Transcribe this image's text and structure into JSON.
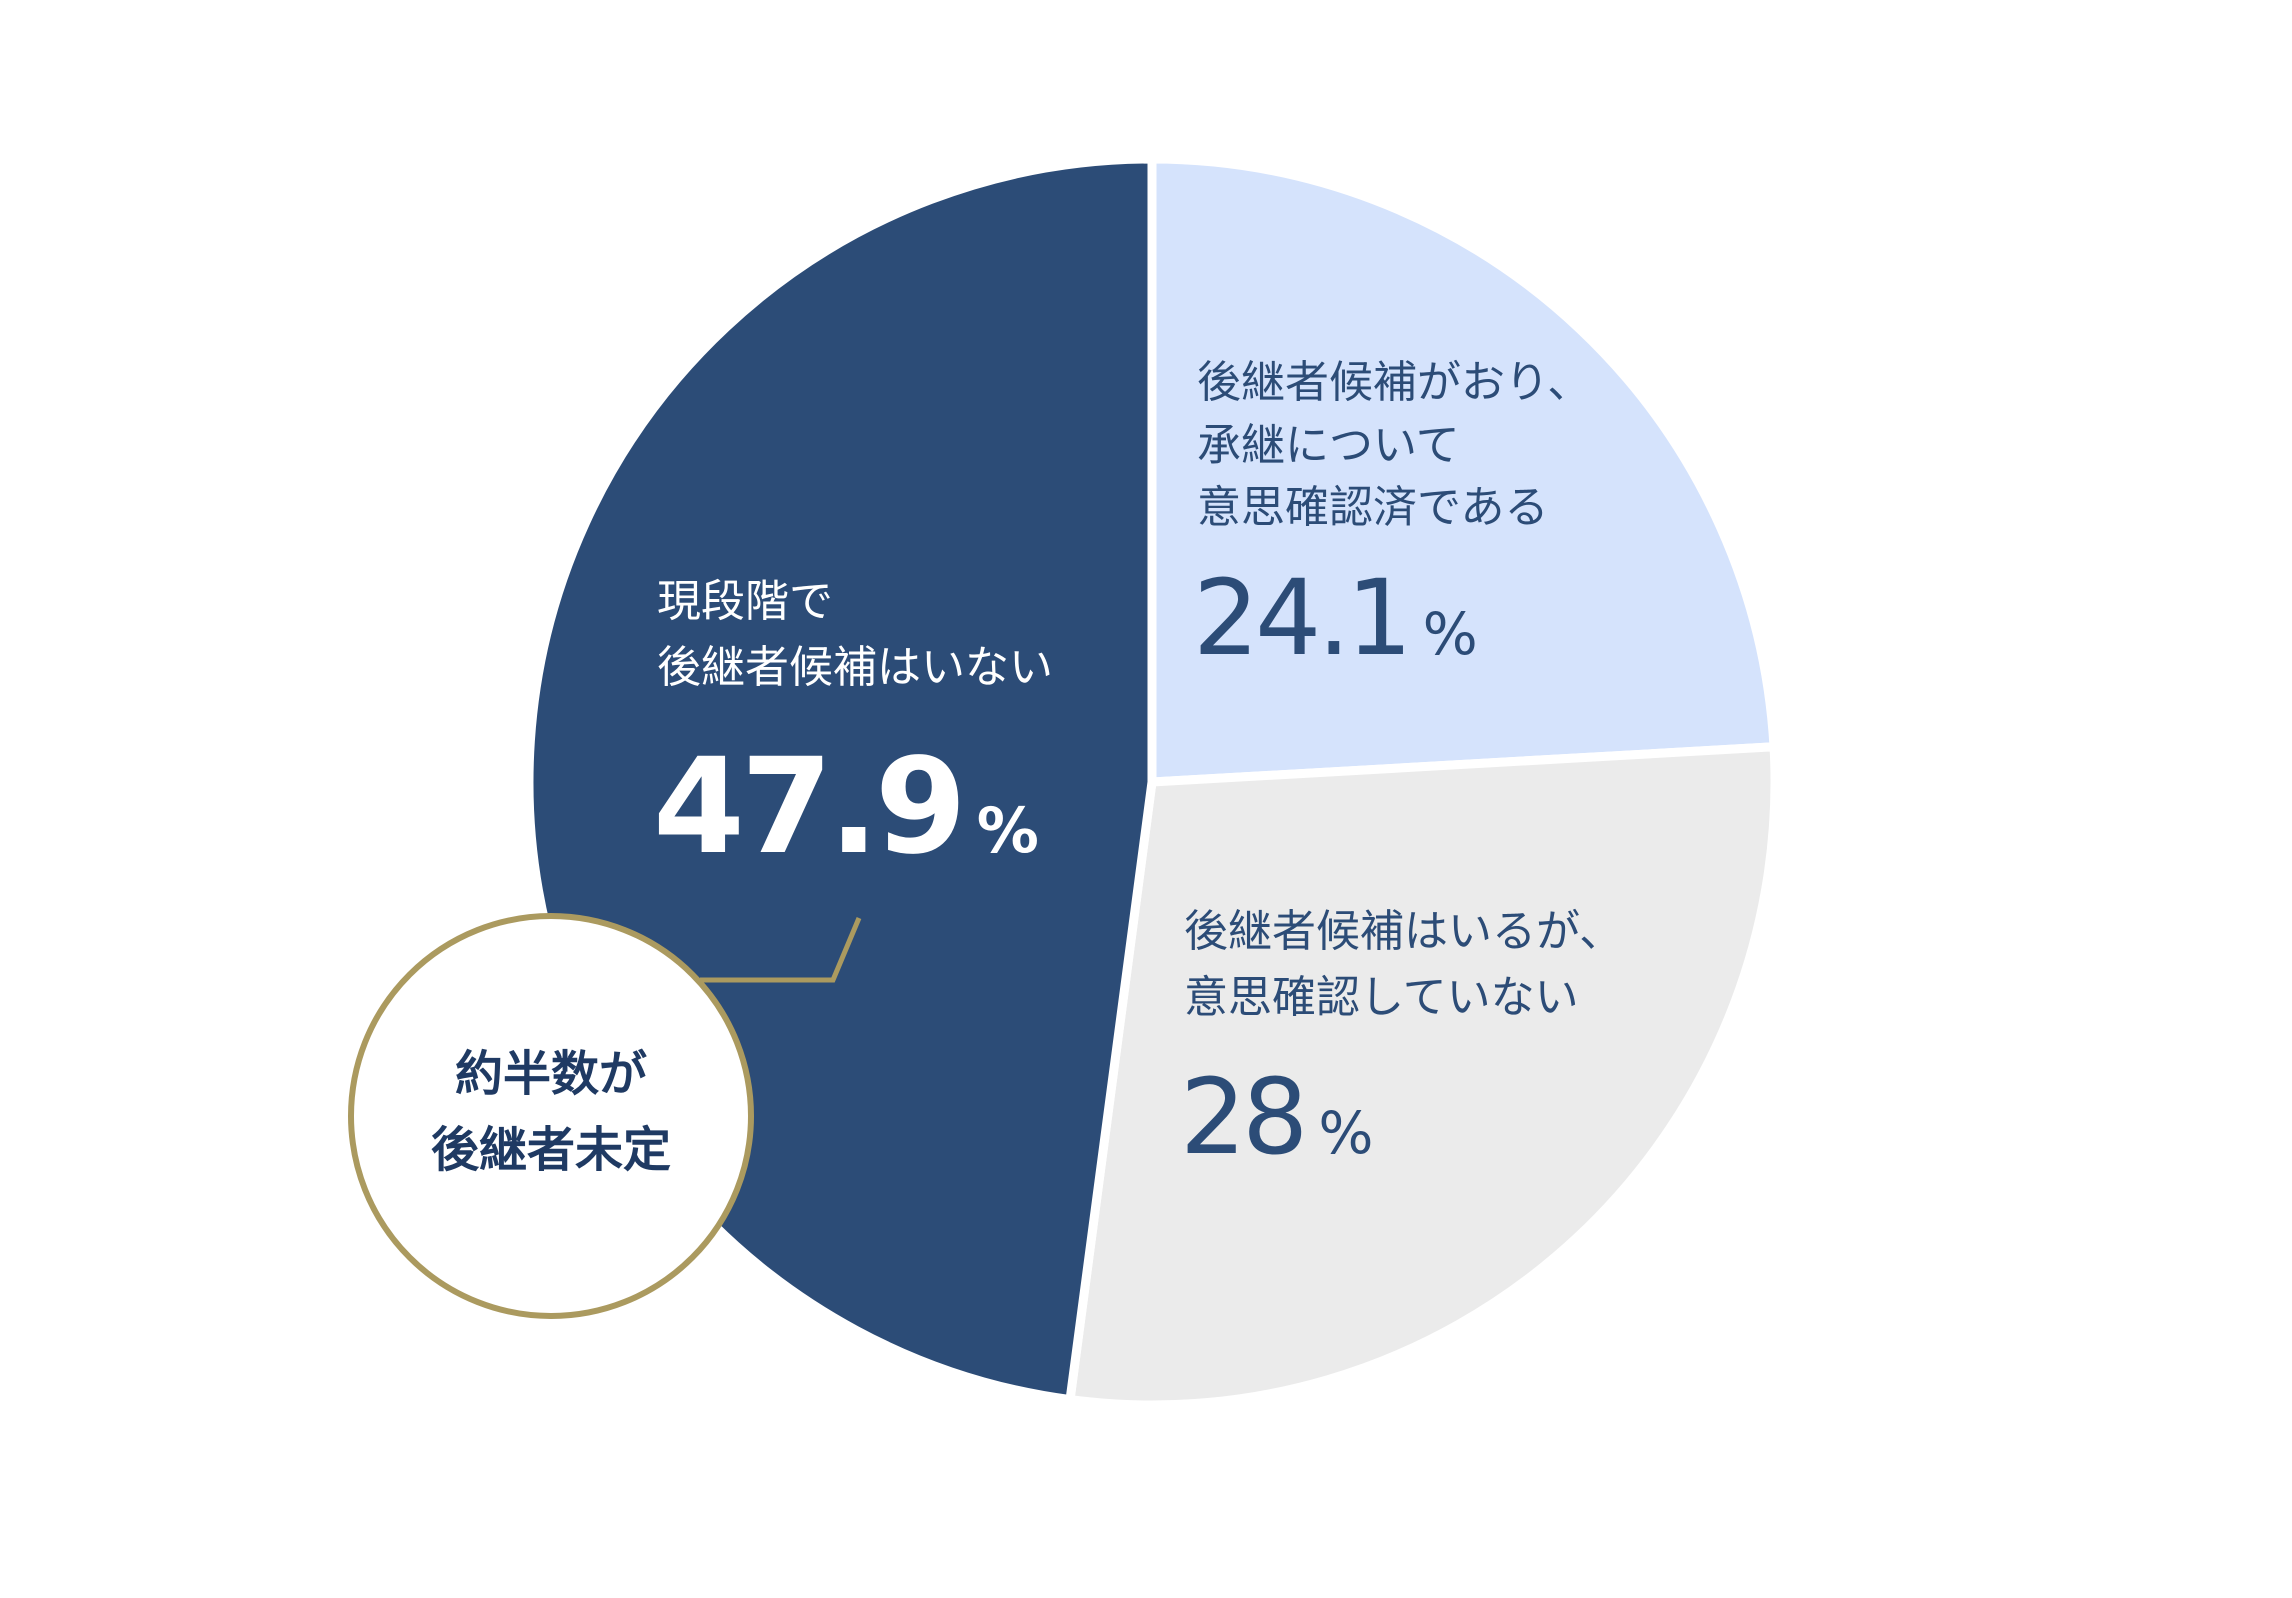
{
  "chart_data": {
    "type": "pie",
    "categories": [
      [
        "後継者候補がおり、",
        "承継について",
        "意思確認済である"
      ],
      [
        "後継者候補はいるが、",
        "意思確認していない"
      ],
      [
        "現段階で",
        "後継者候補はいない"
      ]
    ],
    "values": [
      24.1,
      28,
      47.9
    ],
    "unit": "%",
    "colors": [
      "#d5e3fc",
      "#ebebeb",
      "#2c4c77"
    ],
    "annotation": [
      "約半数が",
      "後継者未定"
    ]
  }
}
